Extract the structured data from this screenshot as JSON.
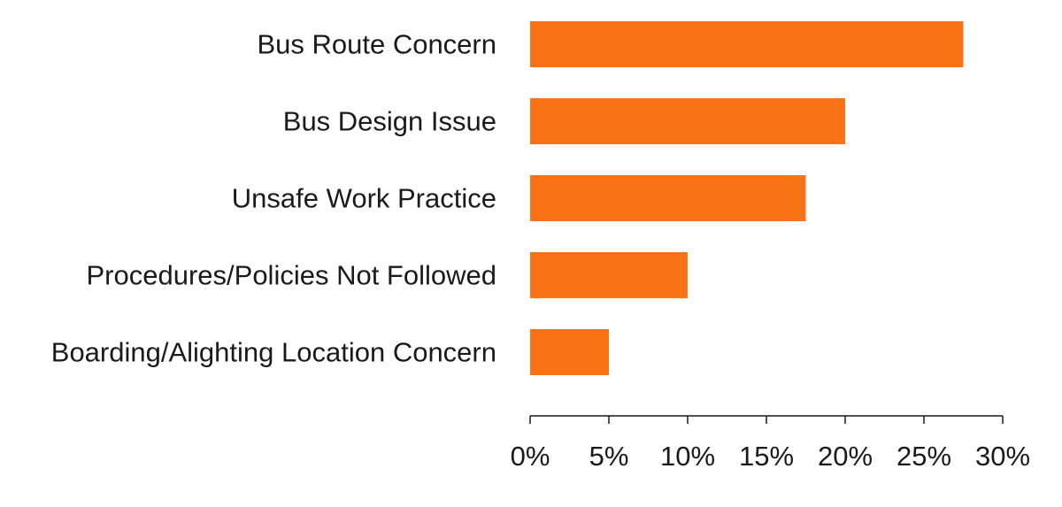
{
  "chart_data": {
    "type": "bar",
    "orientation": "horizontal",
    "categories": [
      "Bus Route Concern",
      "Bus Design Issue",
      "Unsafe Work Practice",
      "Procedures/Policies Not Followed",
      "Boarding/Alighting Location Concern"
    ],
    "values": [
      27.5,
      20.0,
      17.5,
      10.0,
      5.0
    ],
    "unit": "%",
    "xlim": [
      0,
      30
    ],
    "xticks": [
      0,
      5,
      10,
      15,
      20,
      25,
      30
    ],
    "xtick_labels": [
      "0%",
      "5%",
      "10%",
      "15%",
      "20%",
      "25%",
      "30%"
    ],
    "title": "",
    "xlabel": "",
    "ylabel": "",
    "grid": false,
    "legend": "none",
    "bar_color": "#f97316"
  }
}
